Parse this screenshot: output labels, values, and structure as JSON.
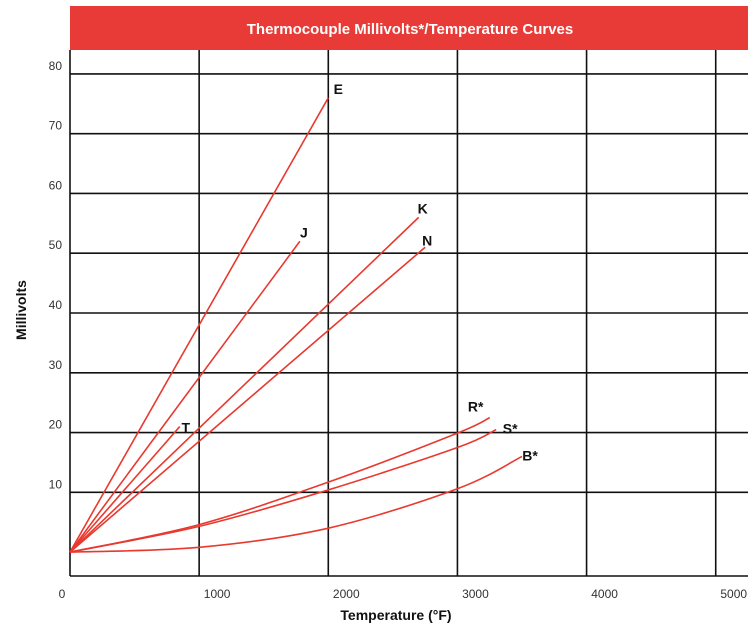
{
  "chart_data": {
    "type": "line",
    "title": "Thermocouple Millivolts*/Temperature Curves",
    "xlabel": "Temperature (°F)",
    "ylabel": "Millivolts",
    "xlim": [
      0,
      5250
    ],
    "ylim": [
      -4,
      84
    ],
    "x_ticks": [
      0,
      1000,
      2000,
      3000,
      4000,
      5000
    ],
    "y_ticks": [
      10,
      20,
      30,
      40,
      50,
      60,
      70,
      80
    ],
    "x_tick_labels": [
      "0",
      "1000",
      "2000",
      "3000",
      "4000",
      "5000"
    ],
    "y_tick_labels": [
      "10",
      "20",
      "30",
      "40",
      "50",
      "60",
      "70",
      "80"
    ],
    "grid": true,
    "colors": {
      "title_bar": "#e83a36",
      "curve": "#e8392f",
      "grid": "#111111"
    },
    "series": [
      {
        "name": "E",
        "points": [
          [
            0,
            0
          ],
          [
            2000,
            76
          ]
        ]
      },
      {
        "name": "J",
        "points": [
          [
            0,
            0
          ],
          [
            1780,
            52
          ]
        ]
      },
      {
        "name": "K",
        "points": [
          [
            0,
            0
          ],
          [
            2700,
            56
          ]
        ]
      },
      {
        "name": "N",
        "points": [
          [
            0,
            0
          ],
          [
            2750,
            51
          ]
        ]
      },
      {
        "name": "T",
        "points": [
          [
            0,
            0
          ],
          [
            850,
            21
          ]
        ]
      },
      {
        "name": "R*",
        "points": [
          [
            0,
            0
          ],
          [
            1000,
            4.6
          ],
          [
            2000,
            11.7
          ],
          [
            3000,
            19.9
          ],
          [
            3250,
            22.5
          ]
        ]
      },
      {
        "name": "S*",
        "points": [
          [
            0,
            0
          ],
          [
            1000,
            4.3
          ],
          [
            2000,
            10.4
          ],
          [
            3000,
            17.5
          ],
          [
            3300,
            20.5
          ]
        ]
      },
      {
        "name": "B*",
        "points": [
          [
            0,
            0
          ],
          [
            1000,
            0.8
          ],
          [
            2000,
            4.0
          ],
          [
            3000,
            10.6
          ],
          [
            3500,
            16.0
          ]
        ]
      }
    ]
  }
}
